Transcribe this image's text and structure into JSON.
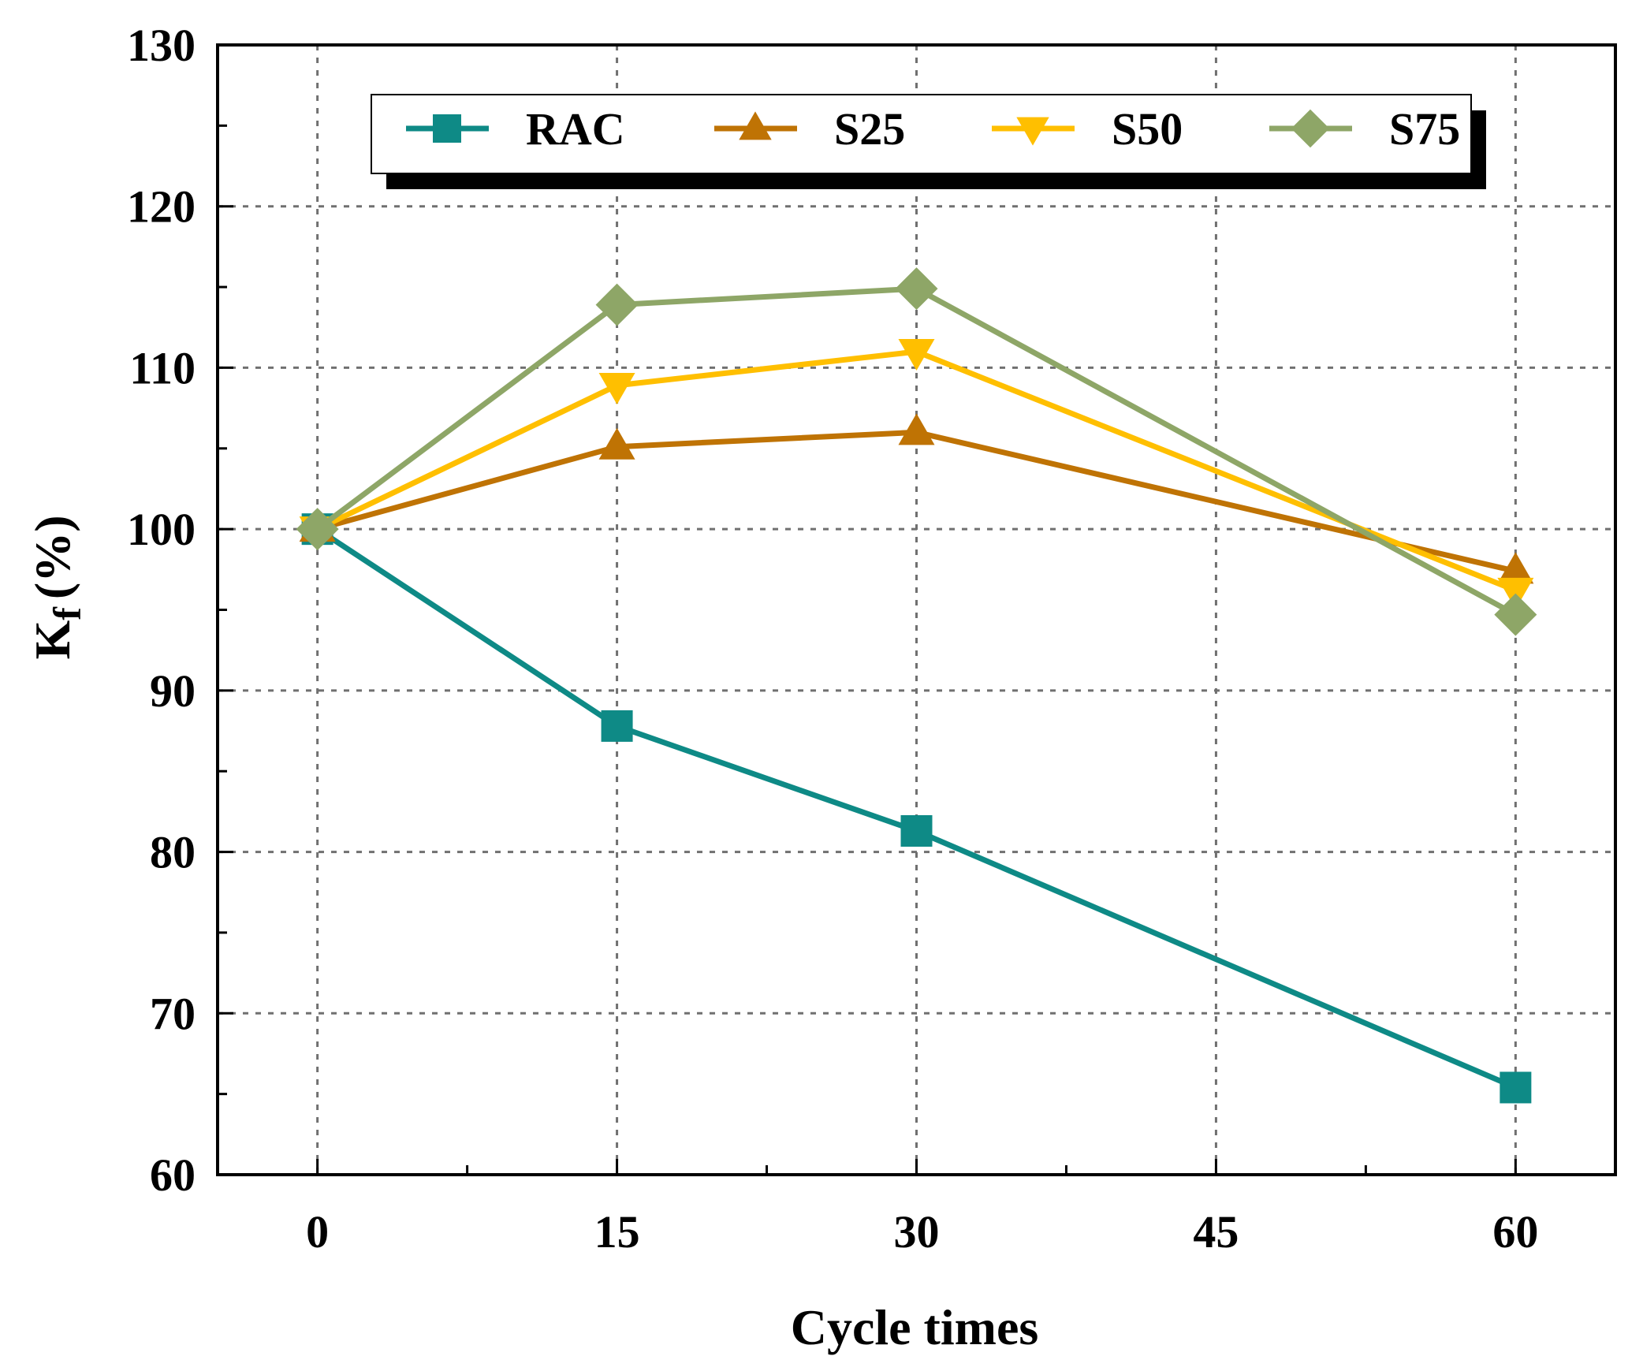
{
  "chart_data": {
    "type": "line",
    "title": "",
    "xlabel": "Cycle times",
    "ylabel_main": "K",
    "ylabel_sub": "f",
    "ylabel_unit": "(%)",
    "x": [
      0,
      15,
      30,
      45,
      60
    ],
    "xticks": [
      "0",
      "15",
      "30",
      "45",
      "60"
    ],
    "yticks": [
      "60",
      "70",
      "80",
      "90",
      "100",
      "110",
      "120",
      "130"
    ],
    "xlim": [
      -5,
      65
    ],
    "ylim": [
      60,
      130
    ],
    "grid": true,
    "legend_position": "top",
    "series": [
      {
        "name": "RAC",
        "marker": "square",
        "color": "#0e8a86",
        "points": [
          [
            0,
            100
          ],
          [
            15,
            87.8
          ],
          [
            30,
            81.3
          ],
          [
            60,
            65.4
          ]
        ]
      },
      {
        "name": "S25",
        "marker": "triangle-up",
        "color": "#bf7304",
        "points": [
          [
            0,
            100
          ],
          [
            15,
            105.1
          ],
          [
            30,
            106
          ],
          [
            60,
            97.4
          ]
        ]
      },
      {
        "name": "S50",
        "marker": "triangle-down",
        "color": "#ffbf00",
        "points": [
          [
            0,
            100
          ],
          [
            15,
            108.9
          ],
          [
            30,
            111
          ],
          [
            60,
            96.2
          ]
        ]
      },
      {
        "name": "S75",
        "marker": "diamond",
        "color": "#8ea667",
        "points": [
          [
            0,
            100
          ],
          [
            15,
            113.9
          ],
          [
            30,
            114.9
          ],
          [
            60,
            94.7
          ]
        ]
      }
    ]
  }
}
